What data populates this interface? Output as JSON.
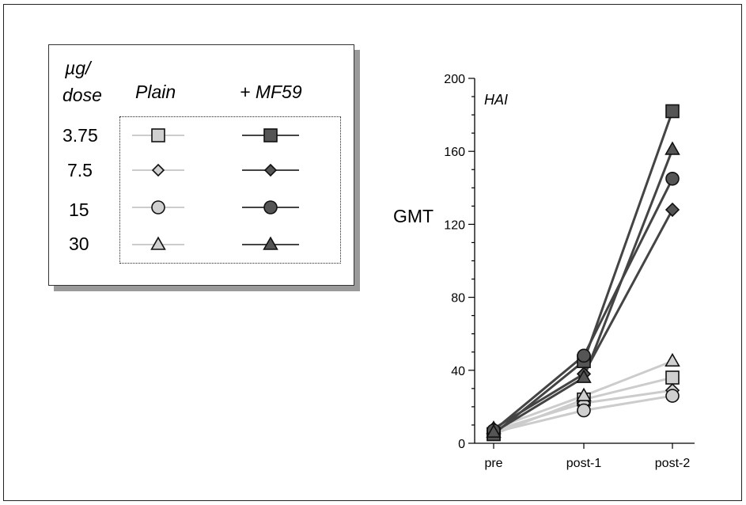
{
  "legend": {
    "dose_header_line1": "µg/",
    "dose_header_line2": "dose",
    "plain_header": "Plain",
    "mf59_header": "+ MF59",
    "doses": [
      "3.75",
      "7.5",
      "15",
      "30"
    ]
  },
  "colors": {
    "plain_fill": "#d0d0d0",
    "plain_line": "#cccccc",
    "mf59_fill": "#555555",
    "mf59_line": "#444444"
  },
  "chart_data": {
    "type": "line",
    "panel_label": "HAI",
    "ylabel": "GMT",
    "categories": [
      "pre",
      "post-1",
      "post-2"
    ],
    "ylim": [
      0,
      200
    ],
    "yticks": [
      0,
      40,
      80,
      120,
      160,
      200
    ],
    "grid": false,
    "series": [
      {
        "name": "3.75 Plain",
        "marker": "square",
        "group": "plain",
        "values": [
          5,
          24,
          36
        ]
      },
      {
        "name": "7.5 Plain",
        "marker": "diamond",
        "group": "plain",
        "values": [
          7,
          22,
          29
        ]
      },
      {
        "name": "15 Plain",
        "marker": "circle",
        "group": "plain",
        "values": [
          6,
          18,
          26
        ]
      },
      {
        "name": "30 Plain",
        "marker": "triangle",
        "group": "plain",
        "values": [
          8,
          26,
          45
        ]
      },
      {
        "name": "3.75 + MF59",
        "marker": "square",
        "group": "mf59",
        "values": [
          5,
          45,
          182
        ]
      },
      {
        "name": "7.5 + MF59",
        "marker": "diamond",
        "group": "mf59",
        "values": [
          8,
          38,
          128
        ]
      },
      {
        "name": "15 + MF59",
        "marker": "circle",
        "group": "mf59",
        "values": [
          7,
          48,
          145
        ]
      },
      {
        "name": "30 + MF59",
        "marker": "triangle",
        "group": "mf59",
        "values": [
          6,
          36,
          161
        ]
      }
    ]
  }
}
